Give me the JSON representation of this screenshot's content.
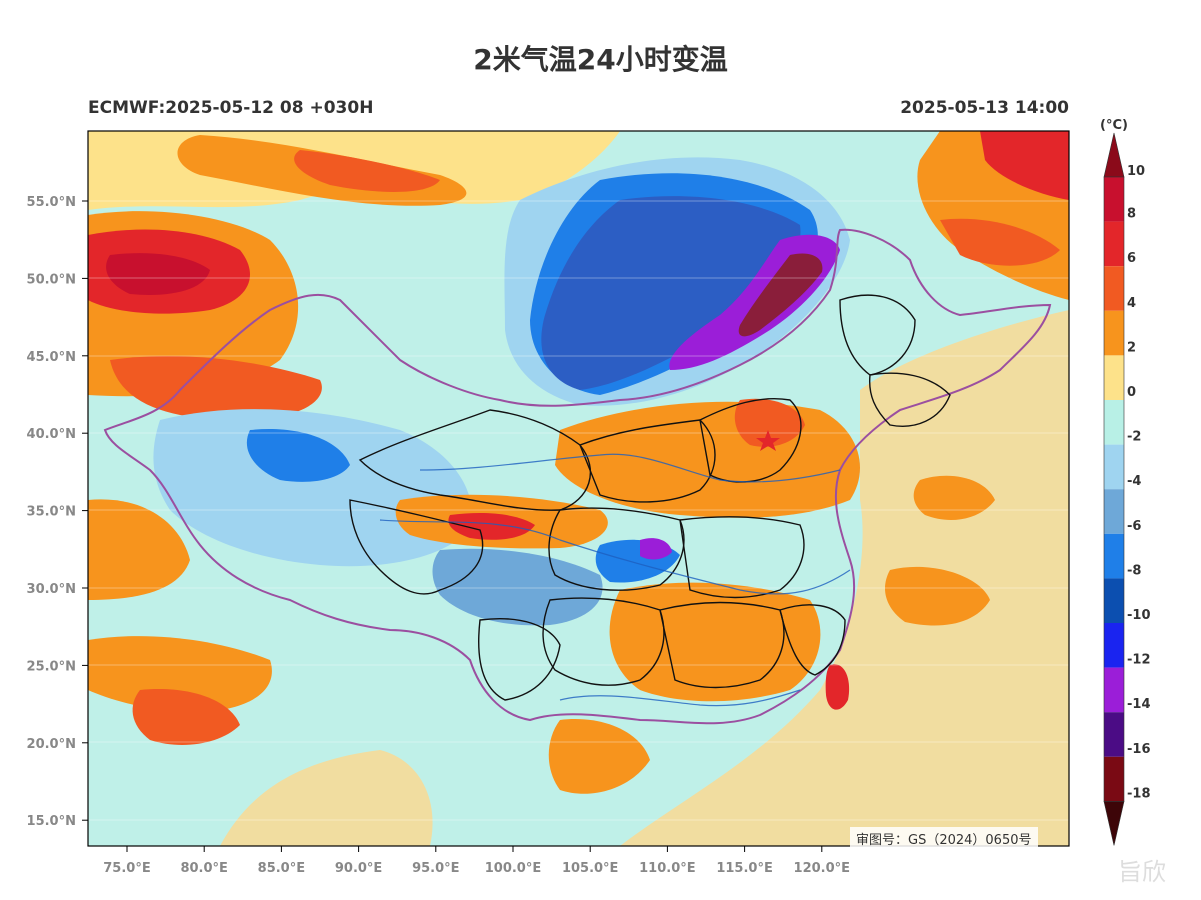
{
  "title": "2米气温24小时变温",
  "subtitle_left": "ECMWF:2025-05-12 08 +030H",
  "subtitle_right": "2025-05-13 14:00",
  "approval": "审图号：GS（2024）0650号",
  "watermark": "旨欣",
  "colorbar": {
    "unit": "(°C)",
    "labels": [
      "10",
      "8",
      "6",
      "4",
      "2",
      "0",
      "-2",
      "-4",
      "-6",
      "-8",
      "-10",
      "-12",
      "-14",
      "-16",
      "-18"
    ],
    "colors": [
      "#c8102e",
      "#e3262a",
      "#f15a22",
      "#f7941d",
      "#fde28a",
      "#b8f0e6",
      "#9fd4f0",
      "#6ea8d8",
      "#1f7fe8",
      "#0c4fb0",
      "#1a24f0",
      "#9b1ed8",
      "#4b0c85",
      "#7a0a14"
    ],
    "top_arrow_color": "#8b0a1a",
    "bottom_arrow_color": "#3d0508"
  },
  "axes": {
    "lat_labels": [
      "55.0°N",
      "50.0°N",
      "45.0°N",
      "40.0°N",
      "35.0°N",
      "30.0°N",
      "25.0°N",
      "20.0°N",
      "15.0°N"
    ],
    "lon_labels": [
      "75.0°E",
      "80.0°E",
      "85.0°E",
      "90.0°E",
      "95.0°E",
      "100.0°E",
      "105.0°E",
      "110.0°E",
      "115.0°E",
      "120.0°E"
    ]
  },
  "map_colors": {
    "ocean": "#f1dda0",
    "light_cyan": "#bff0e8",
    "light_blue": "#9fd4f0",
    "mid_blue": "#6ea8d8",
    "blue": "#1f7fe8",
    "dark_blue": "#2c5ec4",
    "purple": "#9b1ed8",
    "dark_red": "#8a1e3a",
    "orange": "#f7941d",
    "dark_orange": "#f15a22",
    "red": "#e3262a",
    "yellow": "#fde28a"
  }
}
